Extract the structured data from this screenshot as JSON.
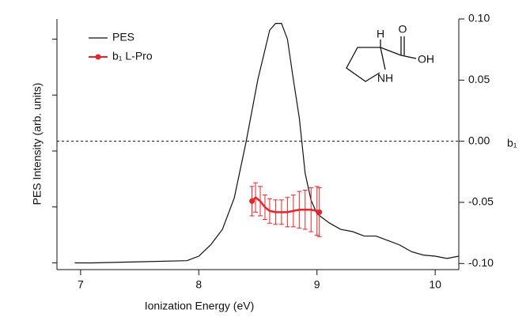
{
  "chart_data": {
    "type": "line",
    "xlabel": "Ionization Energy (eV)",
    "ylabel": "PES Intensity (arb. units)",
    "y2label": "b₁",
    "xlim": [
      6.8,
      10.2
    ],
    "xticks": [
      7,
      8,
      9,
      10
    ],
    "ylim": [
      -0.03,
      1.09
    ],
    "yticks": [
      0,
      0.25,
      0.5,
      0.75,
      1
    ],
    "y2lim": [
      -0.105,
      0.1
    ],
    "y2ticks": [
      {
        "value": 0.1,
        "label": "0.10"
      },
      0.05,
      {
        "value": 0,
        "label": "0.00"
      },
      -0.05,
      {
        "value": -0.1,
        "label": "-0.10"
      }
    ],
    "reference_line_y2": 0,
    "legend": "upper left",
    "structure_labels": [
      "H",
      "O",
      "OH",
      "NH"
    ],
    "series": [
      {
        "name": "PES",
        "color": "#111111",
        "axis": "y",
        "x": [
          6.95,
          7.1,
          7.5,
          7.9,
          8.0,
          8.1,
          8.2,
          8.3,
          8.4,
          8.5,
          8.6,
          8.65,
          8.7,
          8.75,
          8.8,
          8.85,
          8.9,
          8.95,
          9.0,
          9.1,
          9.2,
          9.3,
          9.4,
          9.5,
          9.6,
          9.7,
          9.8,
          9.9,
          10.0,
          10.1,
          10.2
        ],
        "values": [
          0.0,
          0.0,
          0.005,
          0.01,
          0.03,
          0.08,
          0.15,
          0.29,
          0.54,
          0.82,
          1.04,
          1.07,
          1.07,
          1.0,
          0.82,
          0.65,
          0.4,
          0.28,
          0.22,
          0.18,
          0.15,
          0.14,
          0.12,
          0.12,
          0.1,
          0.08,
          0.05,
          0.035,
          0.03,
          0.02,
          0.03
        ]
      },
      {
        "name": "b₁ L-Pro",
        "color": "#e8252b",
        "axis": "y2",
        "x": [
          8.45,
          8.48,
          8.52,
          8.56,
          8.6,
          8.65,
          8.7,
          8.75,
          8.8,
          8.85,
          8.9,
          8.95,
          9.0,
          9.02
        ],
        "values": [
          -0.049,
          -0.046,
          -0.049,
          -0.054,
          -0.057,
          -0.058,
          -0.058,
          -0.058,
          -0.057,
          -0.056,
          -0.056,
          -0.056,
          -0.057,
          -0.058
        ],
        "errors": [
          0.012,
          0.012,
          0.012,
          0.01,
          0.01,
          0.01,
          0.01,
          0.012,
          0.013,
          0.015,
          0.016,
          0.018,
          0.02,
          0.02
        ]
      }
    ]
  }
}
